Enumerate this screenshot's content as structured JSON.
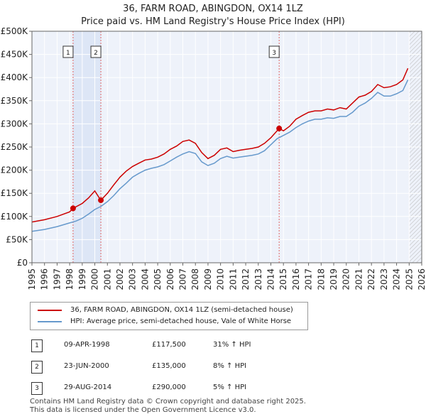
{
  "title": "36, FARM ROAD, ABINGDON, OX14 1LZ",
  "subtitle": "Price paid vs. HM Land Registry's House Price Index (HPI)",
  "chart_data": {
    "type": "line",
    "xlim": [
      1995,
      2026
    ],
    "ylim": [
      0,
      500000
    ],
    "x_ticks": [
      "1995",
      "1996",
      "1997",
      "1998",
      "1999",
      "2000",
      "2001",
      "2002",
      "2003",
      "2004",
      "2005",
      "2006",
      "2007",
      "2008",
      "2009",
      "2010",
      "2011",
      "2012",
      "2013",
      "2014",
      "2015",
      "2016",
      "2017",
      "2018",
      "2019",
      "2020",
      "2021",
      "2022",
      "2023",
      "2024",
      "2025",
      "2026"
    ],
    "y_ticks": [
      {
        "value": 0,
        "label": "£0"
      },
      {
        "value": 50000,
        "label": "£50K"
      },
      {
        "value": 100000,
        "label": "£100K"
      },
      {
        "value": 150000,
        "label": "£150K"
      },
      {
        "value": 200000,
        "label": "£200K"
      },
      {
        "value": 250000,
        "label": "£250K"
      },
      {
        "value": 300000,
        "label": "£300K"
      },
      {
        "value": 350000,
        "label": "£350K"
      },
      {
        "value": 400000,
        "label": "£400K"
      },
      {
        "value": 450000,
        "label": "£450K"
      },
      {
        "value": 500000,
        "label": "£500K"
      }
    ],
    "grid": true,
    "sale_shading_span": [
      1998.27,
      2000.48
    ],
    "future_hatch_from": 2025.0,
    "series": [
      {
        "name": "36, FARM ROAD, ABINGDON, OX14 1LZ (semi-detached house)",
        "color": "#cc0000",
        "x": [
          1995.0,
          1996.0,
          1997.0,
          1998.0,
          1998.27,
          1999.0,
          1999.5,
          2000.0,
          2000.48,
          2001.0,
          2001.5,
          2002.0,
          2002.5,
          2003.0,
          2003.5,
          2004.0,
          2004.5,
          2005.0,
          2005.5,
          2006.0,
          2006.5,
          2007.0,
          2007.5,
          2008.0,
          2008.5,
          2009.0,
          2009.5,
          2010.0,
          2010.5,
          2011.0,
          2011.5,
          2012.0,
          2012.5,
          2013.0,
          2013.5,
          2014.0,
          2014.66,
          2015.0,
          2015.5,
          2016.0,
          2016.5,
          2017.0,
          2017.5,
          2018.0,
          2018.5,
          2019.0,
          2019.5,
          2020.0,
          2020.5,
          2021.0,
          2021.5,
          2022.0,
          2022.5,
          2023.0,
          2023.5,
          2024.0,
          2024.5,
          2024.9
        ],
        "y": [
          88000,
          93000,
          100000,
          110000,
          117500,
          128000,
          140000,
          155000,
          135000,
          150000,
          168000,
          185000,
          198000,
          208000,
          215000,
          222000,
          224000,
          228000,
          235000,
          245000,
          252000,
          262000,
          265000,
          258000,
          238000,
          225000,
          232000,
          245000,
          248000,
          240000,
          243000,
          245000,
          247000,
          250000,
          258000,
          270000,
          290000,
          285000,
          295000,
          310000,
          318000,
          325000,
          328000,
          328000,
          332000,
          330000,
          335000,
          332000,
          345000,
          358000,
          362000,
          370000,
          385000,
          378000,
          380000,
          385000,
          395000,
          420000
        ]
      },
      {
        "name": "HPI: Average price, semi-detached house, Vale of White Horse",
        "color": "#6699cc",
        "x": [
          1995.0,
          1996.0,
          1997.0,
          1998.0,
          1998.5,
          1999.0,
          1999.5,
          2000.0,
          2000.5,
          2001.0,
          2001.5,
          2002.0,
          2002.5,
          2003.0,
          2003.5,
          2004.0,
          2004.5,
          2005.0,
          2005.5,
          2006.0,
          2006.5,
          2007.0,
          2007.5,
          2008.0,
          2008.5,
          2009.0,
          2009.5,
          2010.0,
          2010.5,
          2011.0,
          2011.5,
          2012.0,
          2012.5,
          2013.0,
          2013.5,
          2014.0,
          2014.5,
          2015.0,
          2015.5,
          2016.0,
          2016.5,
          2017.0,
          2017.5,
          2018.0,
          2018.5,
          2019.0,
          2019.5,
          2020.0,
          2020.5,
          2021.0,
          2021.5,
          2022.0,
          2022.5,
          2023.0,
          2023.5,
          2024.0,
          2024.5,
          2024.9
        ],
        "y": [
          68000,
          72000,
          78000,
          86000,
          90000,
          96000,
          105000,
          115000,
          122000,
          132000,
          145000,
          160000,
          172000,
          185000,
          193000,
          200000,
          204000,
          207000,
          212000,
          220000,
          228000,
          235000,
          240000,
          236000,
          218000,
          210000,
          215000,
          225000,
          230000,
          226000,
          228000,
          230000,
          232000,
          235000,
          242000,
          255000,
          268000,
          275000,
          282000,
          292000,
          300000,
          306000,
          310000,
          310000,
          313000,
          312000,
          316000,
          316000,
          325000,
          338000,
          345000,
          355000,
          368000,
          360000,
          360000,
          365000,
          372000,
          395000
        ]
      }
    ],
    "sales": [
      {
        "num": "1",
        "x": 1998.27,
        "y": 117500
      },
      {
        "num": "2",
        "x": 2000.48,
        "y": 135000
      },
      {
        "num": "3",
        "x": 2014.66,
        "y": 290000
      }
    ]
  },
  "legend": {
    "property_label": "36, FARM ROAD, ABINGDON, OX14 1LZ (semi-detached house)",
    "hpi_label": "HPI: Average price, semi-detached house, Vale of White Horse",
    "property_color": "#cc0000",
    "hpi_color": "#6699cc"
  },
  "sales_table": [
    {
      "num": "1",
      "date": "09-APR-1998",
      "price": "£117,500",
      "hpi": "31% ↑ HPI"
    },
    {
      "num": "2",
      "date": "23-JUN-2000",
      "price": "£135,000",
      "hpi": "8% ↑ HPI"
    },
    {
      "num": "3",
      "date": "29-AUG-2014",
      "price": "£290,000",
      "hpi": "5% ↑ HPI"
    }
  ],
  "footer": {
    "line1": "Contains HM Land Registry data © Crown copyright and database right 2025.",
    "line2": "This data is licensed under the Open Government Licence v3.0."
  }
}
